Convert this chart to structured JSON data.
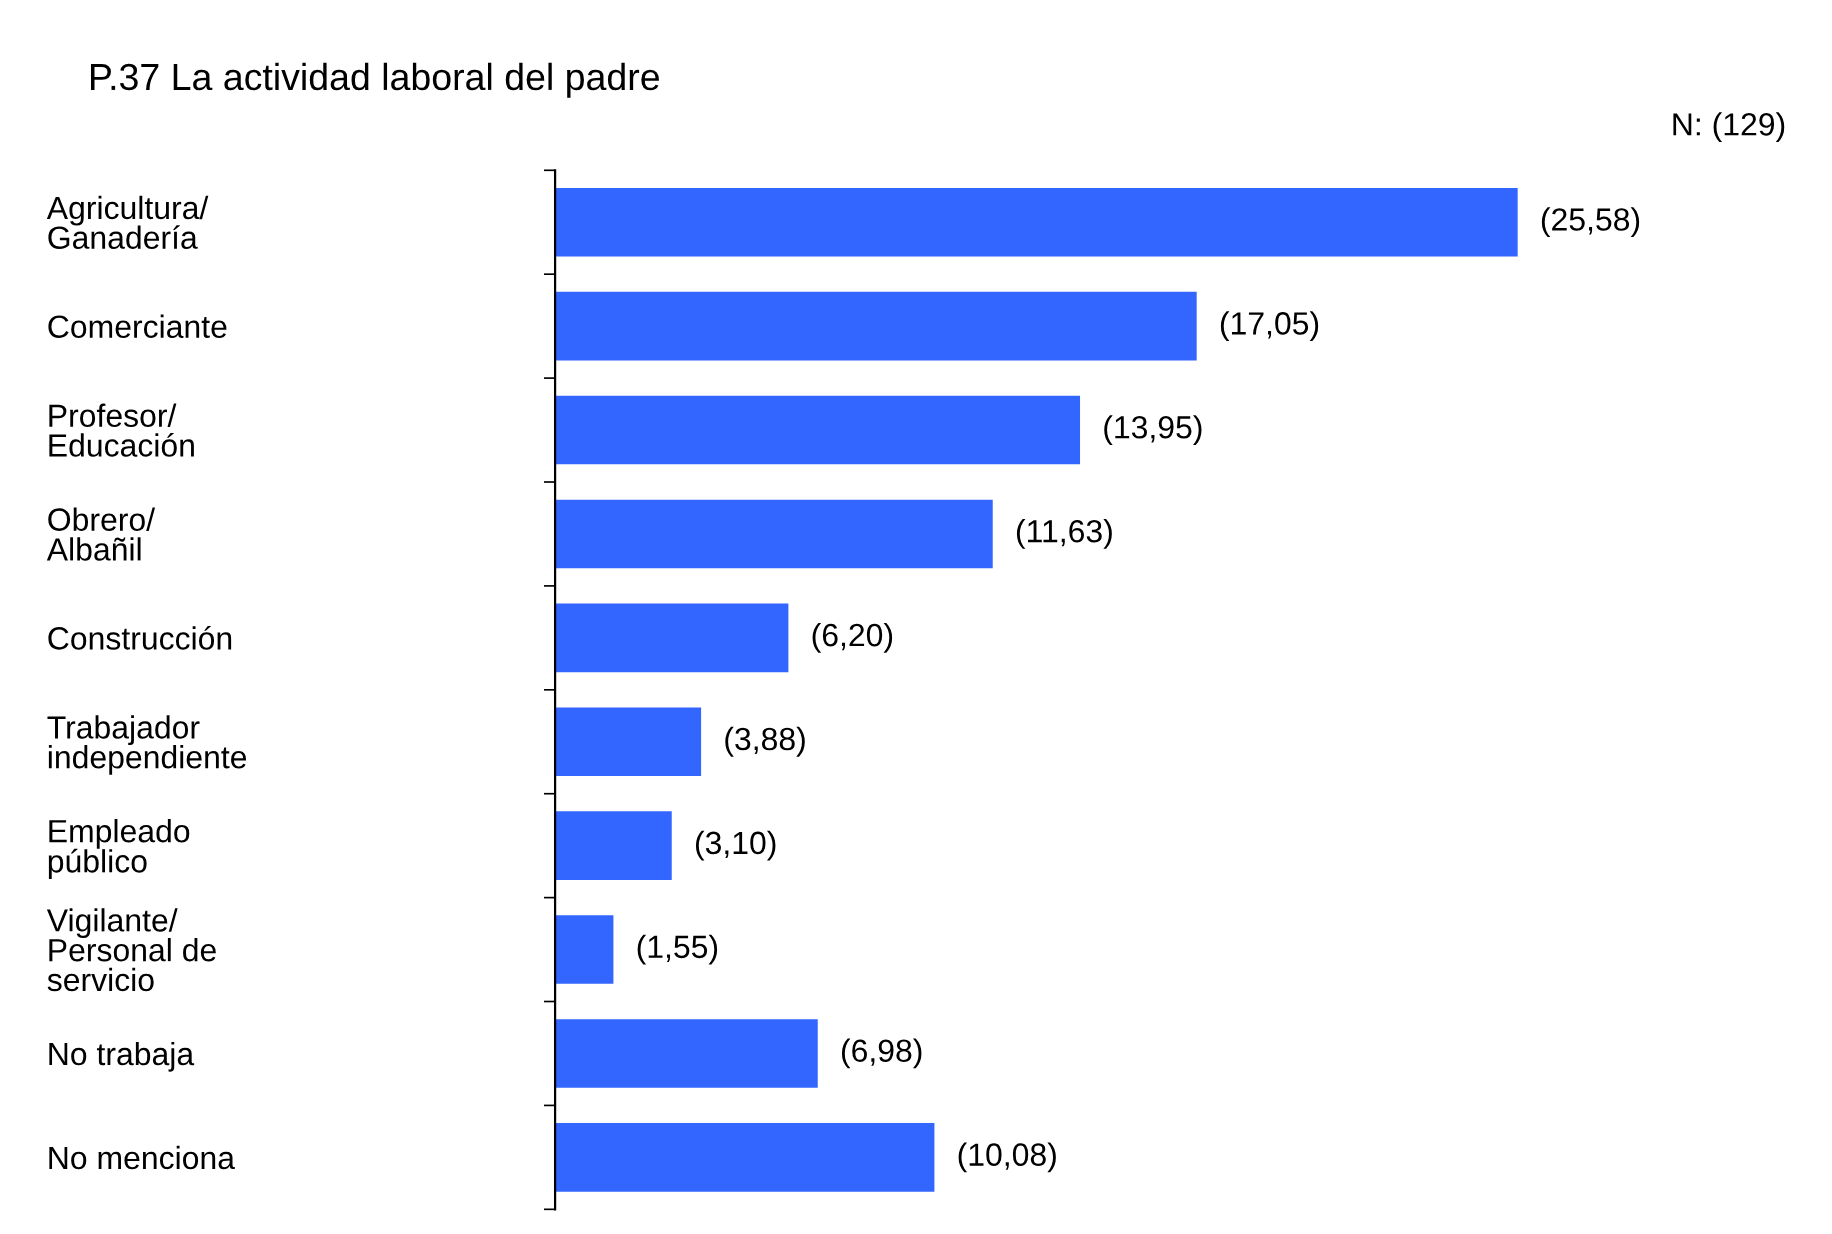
{
  "chart_data": {
    "type": "bar",
    "orientation": "horizontal",
    "title": "P.37 La actividad laboral del padre",
    "annotations": [
      "N: (129)"
    ],
    "categories": [
      "Agricultura/\nGanadería",
      "Comerciante",
      "Profesor/\nEducación",
      "Obrero/\nAlbañil",
      "Construcción",
      "Trabajador\nindependiente",
      "Empleado\npúblico",
      "Vigilante/\nPersonal de\nservicio",
      "No trabaja",
      "No menciona"
    ],
    "values": [
      25.58,
      17.05,
      13.95,
      11.63,
      6.2,
      3.88,
      3.1,
      1.55,
      6.98,
      10.08
    ],
    "value_labels": [
      "(25,58)",
      "(17,05)",
      "(13,95)",
      "(11,63)",
      "(6,20)",
      "(3,88)",
      "(3,10)",
      "(1,55)",
      "(6,98)",
      "(10,08)"
    ],
    "color": "#3366ff",
    "tick_labels": "y",
    "grid": false,
    "legend": false
  }
}
